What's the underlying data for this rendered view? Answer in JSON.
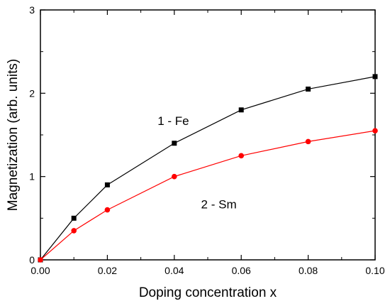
{
  "chart_data": {
    "type": "line",
    "xlabel": "Doping concentration x",
    "ylabel": "Magnetization (arb. units)",
    "xlim": [
      0.0,
      0.1
    ],
    "ylim": [
      0,
      3
    ],
    "x_ticks": [
      0.0,
      0.02,
      0.04,
      0.06,
      0.08,
      0.1
    ],
    "x_tick_labels": [
      "0.00",
      "0.02",
      "0.04",
      "0.06",
      "0.08",
      "0.10"
    ],
    "y_ticks": [
      0,
      1,
      2,
      3
    ],
    "y_tick_labels": [
      "0",
      "1",
      "2",
      "3"
    ],
    "grid": false,
    "series": [
      {
        "name": "1 - Fe",
        "color": "#000000",
        "marker": "square",
        "x": [
          0.0,
          0.01,
          0.02,
          0.04,
          0.06,
          0.08,
          0.1
        ],
        "y": [
          0.0,
          0.5,
          0.9,
          1.4,
          1.8,
          2.05,
          2.2
        ]
      },
      {
        "name": "2 - Sm",
        "color": "#ff0000",
        "marker": "circle",
        "x": [
          0.0,
          0.01,
          0.02,
          0.04,
          0.06,
          0.08,
          0.1
        ],
        "y": [
          0.0,
          0.35,
          0.6,
          1.0,
          1.25,
          1.42,
          1.55
        ]
      }
    ],
    "annotations": [
      {
        "text": "1 - Fe",
        "x": 0.035,
        "y": 1.62
      },
      {
        "text": "2 - Sm",
        "x": 0.048,
        "y": 0.62
      }
    ]
  }
}
